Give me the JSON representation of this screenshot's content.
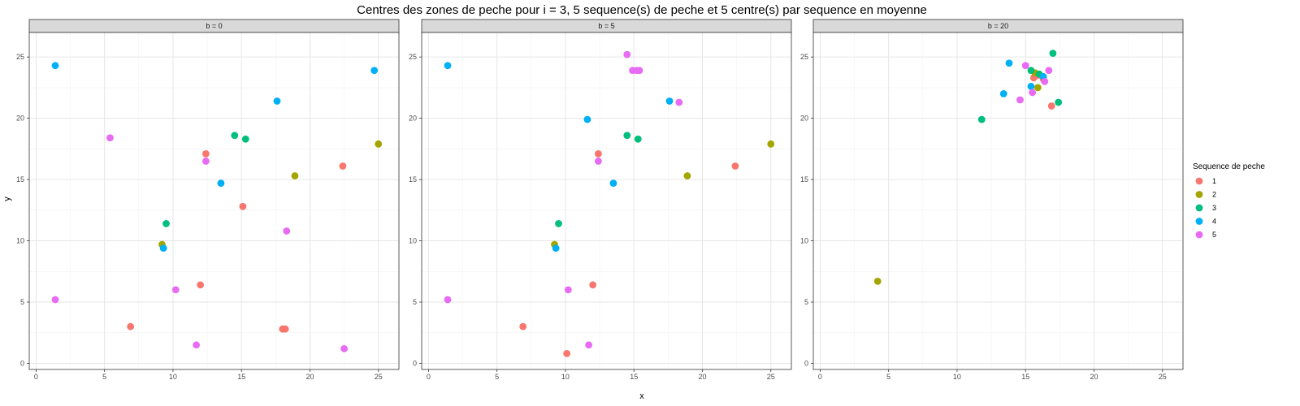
{
  "chart_data": {
    "type": "scatter",
    "title": "Centres des zones de peche pour i = 3, 5 sequence(s) de peche et 5 centre(s) par sequence en moyenne",
    "xlabel": "x",
    "ylabel": "y",
    "xlim": [
      -0.5,
      26.5
    ],
    "ylim": [
      -0.5,
      27
    ],
    "x_ticks": [
      0,
      5,
      10,
      15,
      20,
      25
    ],
    "y_ticks": [
      0,
      5,
      10,
      15,
      20,
      25
    ],
    "grid": true,
    "legend": {
      "title": "Sequence de peche",
      "position": "right",
      "entries": [
        {
          "label": "1",
          "color": "#F8766D"
        },
        {
          "label": "2",
          "color": "#A3A500"
        },
        {
          "label": "3",
          "color": "#00BF7D"
        },
        {
          "label": "4",
          "color": "#00B0F6"
        },
        {
          "label": "5",
          "color": "#E76BF3"
        }
      ]
    },
    "panels": [
      {
        "label": "b = 0",
        "series": [
          {
            "name": "1",
            "points": [
              [
                12.4,
                17.1
              ],
              [
                15.1,
                12.8
              ],
              [
                22.4,
                16.1
              ],
              [
                12.0,
                6.4
              ],
              [
                6.9,
                3.0
              ],
              [
                18.0,
                2.8
              ],
              [
                18.2,
                2.8
              ]
            ]
          },
          {
            "name": "2",
            "points": [
              [
                25.0,
                17.9
              ],
              [
                18.9,
                15.3
              ],
              [
                9.2,
                9.7
              ]
            ]
          },
          {
            "name": "3",
            "points": [
              [
                14.5,
                18.6
              ],
              [
                15.3,
                18.3
              ],
              [
                9.5,
                11.4
              ]
            ]
          },
          {
            "name": "4",
            "points": [
              [
                1.4,
                24.3
              ],
              [
                24.7,
                23.9
              ],
              [
                17.6,
                21.4
              ],
              [
                13.5,
                14.7
              ],
              [
                9.3,
                9.4
              ]
            ]
          },
          {
            "name": "5",
            "points": [
              [
                5.4,
                18.4
              ],
              [
                12.4,
                16.5
              ],
              [
                18.3,
                10.8
              ],
              [
                10.2,
                6.0
              ],
              [
                1.4,
                5.2
              ],
              [
                11.7,
                1.5
              ],
              [
                22.5,
                1.2
              ]
            ]
          }
        ]
      },
      {
        "label": "b = 5",
        "series": [
          {
            "name": "1",
            "points": [
              [
                12.4,
                17.1
              ],
              [
                22.4,
                16.1
              ],
              [
                12.0,
                6.4
              ],
              [
                6.9,
                3.0
              ],
              [
                10.1,
                0.8
              ]
            ]
          },
          {
            "name": "2",
            "points": [
              [
                25.0,
                17.9
              ],
              [
                18.9,
                15.3
              ],
              [
                9.2,
                9.7
              ]
            ]
          },
          {
            "name": "3",
            "points": [
              [
                14.5,
                18.6
              ],
              [
                15.3,
                18.3
              ],
              [
                9.5,
                11.4
              ]
            ]
          },
          {
            "name": "4",
            "points": [
              [
                1.4,
                24.3
              ],
              [
                17.6,
                21.4
              ],
              [
                11.6,
                19.9
              ],
              [
                13.5,
                14.7
              ],
              [
                9.3,
                9.4
              ]
            ]
          },
          {
            "name": "5",
            "points": [
              [
                14.5,
                25.2
              ],
              [
                14.9,
                23.9
              ],
              [
                15.2,
                23.9
              ],
              [
                15.4,
                23.9
              ],
              [
                18.3,
                21.3
              ],
              [
                12.4,
                16.5
              ],
              [
                10.2,
                6.0
              ],
              [
                1.4,
                5.2
              ],
              [
                11.7,
                1.5
              ]
            ]
          }
        ]
      },
      {
        "label": "b = 20",
        "series": [
          {
            "name": "1",
            "points": [
              [
                15.6,
                23.3
              ],
              [
                15.9,
                23.5
              ],
              [
                16.3,
                23.2
              ],
              [
                16.9,
                21.0
              ]
            ]
          },
          {
            "name": "2",
            "points": [
              [
                15.7,
                23.7
              ],
              [
                15.9,
                22.5
              ],
              [
                4.2,
                6.7
              ]
            ]
          },
          {
            "name": "3",
            "points": [
              [
                17.0,
                25.3
              ],
              [
                15.4,
                23.9
              ],
              [
                16.0,
                23.6
              ],
              [
                17.4,
                21.3
              ],
              [
                11.8,
                19.9
              ]
            ]
          },
          {
            "name": "4",
            "points": [
              [
                13.8,
                24.5
              ],
              [
                16.3,
                23.4
              ],
              [
                15.4,
                22.6
              ],
              [
                13.4,
                22.0
              ]
            ]
          },
          {
            "name": "5",
            "points": [
              [
                15.0,
                24.3
              ],
              [
                16.7,
                23.9
              ],
              [
                16.4,
                23.0
              ],
              [
                15.5,
                22.1
              ],
              [
                14.6,
                21.5
              ]
            ]
          }
        ]
      }
    ]
  }
}
